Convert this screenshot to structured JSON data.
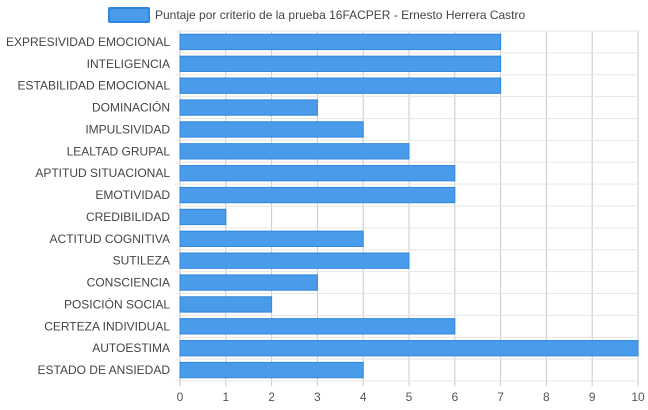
{
  "chart_data": {
    "type": "bar",
    "orientation": "horizontal",
    "categories": [
      "EXPRESIVIDAD EMOCIONAL",
      "INTELIGENCIA",
      "ESTABILIDAD EMOCIONAL",
      "DOMINACIÓN",
      "IMPULSIVIDAD",
      "LEALTAD GRUPAL",
      "APTITUD SITUACIONAL",
      "EMOTIVIDAD",
      "CREDIBILIDAD",
      "ACTITUD COGNITIVA",
      "SUTILEZA",
      "CONSCIENCIA",
      "POSICIÓN SOCIAL",
      "CERTEZA INDIVIDUAL",
      "AUTOESTIMA",
      "ESTADO DE ANSIEDAD"
    ],
    "series": [
      {
        "name": "Puntaje por criterio de la prueba 16FACPER - Ernesto Herrera Castro",
        "values": [
          7,
          7,
          7,
          3,
          4,
          5,
          6,
          6,
          1,
          4,
          5,
          3,
          2,
          6,
          10,
          4
        ],
        "color": "#4a9bea",
        "border_color": "#2e86de"
      }
    ],
    "xlim": [
      0,
      10
    ],
    "x_ticks": [
      "0",
      "1",
      "2",
      "3",
      "4",
      "5",
      "6",
      "7",
      "8",
      "9",
      "10"
    ],
    "grid": true,
    "legend_position": "top"
  }
}
